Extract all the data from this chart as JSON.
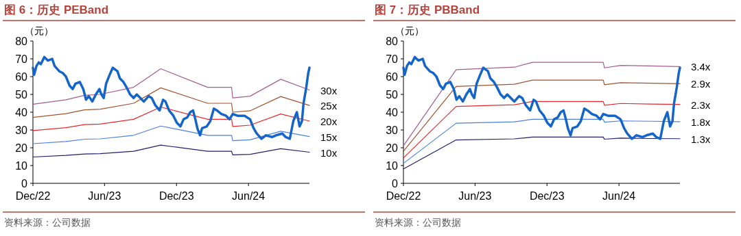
{
  "chart_data": [
    {
      "type": "line",
      "title": "图 6：历史 PEBand",
      "ylabel": "（元）",
      "annotations": [
        "资料来源：公司数据"
      ],
      "xlim": [
        "2022-12-01",
        "2024-11-03"
      ],
      "xticks": [
        {
          "value": "2022-12-01",
          "label": "Dec/22"
        },
        {
          "value": "2023-06-01",
          "label": "Jun/23"
        },
        {
          "value": "2023-12-01",
          "label": "Dec/23"
        },
        {
          "value": "2024-06-01",
          "label": "Jun/24"
        }
      ],
      "ylim": [
        0,
        80
      ],
      "yticks": [
        0,
        10,
        20,
        30,
        40,
        50,
        60,
        70,
        80
      ],
      "series": [
        {
          "name": "30x",
          "color": "#a35c8e",
          "x": [
            "2022-12-01",
            "2023-02-23",
            "2023-04-11",
            "2023-05-21",
            "2023-08-14",
            "2023-10-22",
            "2024-02-18",
            "2024-04-19",
            "2024-04-22",
            "2024-06-05",
            "2024-08-22",
            "2024-11-03"
          ],
          "values": [
            44.5,
            47.0,
            49.5,
            50.0,
            54.0,
            64.4,
            54.0,
            54.0,
            48.0,
            49.0,
            58.5,
            52.5
          ]
        },
        {
          "name": "25x",
          "color": "#a0522d",
          "x": [
            "2022-12-01",
            "2023-02-23",
            "2023-04-11",
            "2023-05-21",
            "2023-08-14",
            "2023-10-22",
            "2024-02-18",
            "2024-04-19",
            "2024-04-22",
            "2024-06-05",
            "2024-08-22",
            "2024-11-03"
          ],
          "values": [
            37.1,
            39.2,
            41.3,
            41.7,
            45.0,
            53.7,
            45.0,
            45.0,
            40.0,
            40.8,
            48.8,
            43.8
          ]
        },
        {
          "name": "20x",
          "color": "#e8262a",
          "x": [
            "2022-12-01",
            "2023-02-23",
            "2023-04-11",
            "2023-05-21",
            "2023-08-14",
            "2023-10-22",
            "2024-02-18",
            "2024-04-19",
            "2024-04-22",
            "2024-06-05",
            "2024-08-22",
            "2024-11-03"
          ],
          "values": [
            29.7,
            31.3,
            33.0,
            33.3,
            36.0,
            42.9,
            36.0,
            36.0,
            32.0,
            32.7,
            39.0,
            35.0
          ]
        },
        {
          "name": "15x",
          "color": "#4a7fe0",
          "x": [
            "2022-12-01",
            "2023-02-23",
            "2023-04-11",
            "2023-05-21",
            "2023-08-14",
            "2023-10-22",
            "2024-02-18",
            "2024-04-19",
            "2024-04-22",
            "2024-06-05",
            "2024-08-22",
            "2024-11-03"
          ],
          "values": [
            22.3,
            23.5,
            24.8,
            25.0,
            27.0,
            32.2,
            27.0,
            27.0,
            24.0,
            24.5,
            29.3,
            26.3
          ]
        },
        {
          "name": "10x",
          "color": "#1f1f6e",
          "x": [
            "2022-12-01",
            "2023-02-23",
            "2023-04-11",
            "2023-05-21",
            "2023-08-14",
            "2023-10-22",
            "2024-02-18",
            "2024-04-19",
            "2024-04-22",
            "2024-06-05",
            "2024-08-22",
            "2024-11-03"
          ],
          "values": [
            14.8,
            15.7,
            16.5,
            16.7,
            18.0,
            21.5,
            18.0,
            18.0,
            16.0,
            16.3,
            19.5,
            17.5
          ]
        },
        {
          "color": "#1565c8",
          "x": [
            "2022-12-01",
            "2022-12-04",
            "2022-12-10",
            "2022-12-16",
            "2022-12-21",
            "2022-12-30",
            "2023-01-08",
            "2023-01-19",
            "2023-01-25",
            "2023-02-06",
            "2023-02-15",
            "2023-02-23",
            "2023-03-04",
            "2023-03-12",
            "2023-03-19",
            "2023-03-30",
            "2023-04-08",
            "2023-04-15",
            "2023-04-22",
            "2023-05-01",
            "2023-05-10",
            "2023-05-19",
            "2023-05-24",
            "2023-05-30",
            "2023-06-05",
            "2023-06-14",
            "2023-06-22",
            "2023-06-28",
            "2023-07-04",
            "2023-07-10",
            "2023-07-19",
            "2023-07-27",
            "2023-08-05",
            "2023-08-14",
            "2023-08-22",
            "2023-08-31",
            "2023-09-09",
            "2023-09-21",
            "2023-09-29",
            "2023-10-08",
            "2023-10-19",
            "2023-10-28",
            "2023-11-03",
            "2023-11-12",
            "2023-11-23",
            "2023-12-02",
            "2023-12-11",
            "2023-12-19",
            "2023-12-28",
            "2024-01-05",
            "2024-01-12",
            "2024-01-18",
            "2024-01-23",
            "2024-01-30",
            "2024-02-04",
            "2024-02-16",
            "2024-02-25",
            "2024-03-05",
            "2024-03-13",
            "2024-03-24",
            "2024-04-05",
            "2024-04-14",
            "2024-04-22",
            "2024-05-04",
            "2024-05-22",
            "2024-06-05",
            "2024-06-14",
            "2024-06-22",
            "2024-07-04",
            "2024-07-15",
            "2024-07-31",
            "2024-08-10",
            "2024-08-26",
            "2024-09-04",
            "2024-09-14",
            "2024-09-23",
            "2024-10-02",
            "2024-10-09",
            "2024-10-15",
            "2024-10-19",
            "2024-10-26",
            "2024-10-31",
            "2024-11-03"
          ],
          "values": [
            65,
            61,
            66,
            68,
            67,
            71,
            69,
            70,
            66,
            63,
            62,
            60,
            55,
            53,
            56,
            57,
            53,
            47,
            49,
            46,
            50,
            53,
            50,
            48,
            56,
            61,
            65,
            64,
            63,
            59,
            57,
            54,
            50,
            48,
            50,
            48,
            46,
            49,
            48,
            44,
            41,
            47,
            46,
            41,
            38,
            34,
            32,
            36,
            37,
            40,
            41,
            36,
            31,
            27,
            31,
            32,
            35,
            42,
            41,
            39,
            38,
            36,
            39,
            38,
            38,
            36,
            31,
            28,
            25,
            27,
            26,
            27,
            28,
            26,
            25,
            35,
            40,
            32,
            35,
            45,
            54,
            62,
            65
          ]
        }
      ]
    },
    {
      "type": "line",
      "title": "图 7：历史 PBBand",
      "ylabel": "（元）",
      "annotations": [
        "资料来源：公司数据"
      ],
      "xlim": [
        "2022-12-01",
        "2024-11-03"
      ],
      "xticks": [
        {
          "value": "2022-12-01",
          "label": "Dec/22"
        },
        {
          "value": "2023-06-01",
          "label": "Jun/23"
        },
        {
          "value": "2023-12-01",
          "label": "Dec/23"
        },
        {
          "value": "2024-06-01",
          "label": "Jun/24"
        }
      ],
      "ylim": [
        0,
        80
      ],
      "yticks": [
        0,
        10,
        20,
        30,
        40,
        50,
        60,
        70,
        80
      ],
      "series": [
        {
          "name": "3.4x",
          "color": "#a35c8e",
          "x": [
            "2022-12-01",
            "2023-04-14",
            "2023-09-09",
            "2023-10-25",
            "2024-04-22",
            "2024-04-25",
            "2024-06-05",
            "2024-08-22",
            "2024-11-03"
          ],
          "values": [
            21.1,
            63.9,
            65.3,
            68.0,
            68.0,
            64.9,
            66.3,
            66.0,
            65.6
          ]
        },
        {
          "name": "2.9x",
          "color": "#a0522d",
          "x": [
            "2022-12-01",
            "2023-04-14",
            "2023-09-09",
            "2023-10-25",
            "2024-04-22",
            "2024-04-25",
            "2024-06-05",
            "2024-08-22",
            "2024-11-03"
          ],
          "values": [
            18.0,
            54.5,
            55.7,
            58.0,
            58.0,
            55.4,
            56.6,
            56.3,
            56.0
          ]
        },
        {
          "name": "2.3x",
          "color": "#e8262a",
          "x": [
            "2022-12-01",
            "2023-04-14",
            "2023-09-09",
            "2023-10-25",
            "2024-04-22",
            "2024-04-25",
            "2024-06-05",
            "2024-08-22",
            "2024-11-03"
          ],
          "values": [
            14.3,
            43.2,
            44.2,
            46.0,
            46.0,
            43.9,
            44.9,
            44.6,
            44.4
          ]
        },
        {
          "name": "1.8x",
          "color": "#4a7fe0",
          "x": [
            "2022-12-01",
            "2023-04-14",
            "2023-09-09",
            "2023-10-25",
            "2024-04-22",
            "2024-04-25",
            "2024-06-05",
            "2024-08-22",
            "2024-11-03"
          ],
          "values": [
            11.2,
            33.8,
            34.6,
            36.0,
            36.0,
            34.4,
            35.1,
            34.9,
            34.7
          ]
        },
        {
          "name": "1.3x",
          "color": "#1f1f6e",
          "x": [
            "2022-12-01",
            "2023-04-14",
            "2023-09-09",
            "2023-10-25",
            "2024-04-22",
            "2024-04-25",
            "2024-06-05",
            "2024-08-22",
            "2024-11-03"
          ],
          "values": [
            8.1,
            24.4,
            25.0,
            26.0,
            26.0,
            24.8,
            25.4,
            25.2,
            25.1
          ]
        },
        {
          "color": "#1565c8",
          "x": [
            "2022-12-01",
            "2022-12-04",
            "2022-12-10",
            "2022-12-16",
            "2022-12-21",
            "2022-12-30",
            "2023-01-08",
            "2023-01-19",
            "2023-01-25",
            "2023-02-06",
            "2023-02-15",
            "2023-02-23",
            "2023-03-04",
            "2023-03-12",
            "2023-03-19",
            "2023-03-30",
            "2023-04-08",
            "2023-04-15",
            "2023-04-22",
            "2023-05-01",
            "2023-05-10",
            "2023-05-19",
            "2023-05-24",
            "2023-05-30",
            "2023-06-05",
            "2023-06-14",
            "2023-06-22",
            "2023-06-28",
            "2023-07-04",
            "2023-07-10",
            "2023-07-19",
            "2023-07-27",
            "2023-08-05",
            "2023-08-14",
            "2023-08-22",
            "2023-08-31",
            "2023-09-09",
            "2023-09-21",
            "2023-09-29",
            "2023-10-08",
            "2023-10-19",
            "2023-10-28",
            "2023-11-03",
            "2023-11-12",
            "2023-11-23",
            "2023-12-02",
            "2023-12-11",
            "2023-12-19",
            "2023-12-28",
            "2024-01-05",
            "2024-01-12",
            "2024-01-18",
            "2024-01-23",
            "2024-01-30",
            "2024-02-04",
            "2024-02-16",
            "2024-02-25",
            "2024-03-05",
            "2024-03-13",
            "2024-03-24",
            "2024-04-05",
            "2024-04-14",
            "2024-04-22",
            "2024-05-04",
            "2024-05-22",
            "2024-06-05",
            "2024-06-14",
            "2024-06-22",
            "2024-07-04",
            "2024-07-15",
            "2024-07-31",
            "2024-08-10",
            "2024-08-26",
            "2024-09-04",
            "2024-09-14",
            "2024-09-23",
            "2024-10-02",
            "2024-10-09",
            "2024-10-15",
            "2024-10-19",
            "2024-10-26",
            "2024-10-31",
            "2024-11-03"
          ],
          "values": [
            65,
            61,
            66,
            68,
            67,
            71,
            69,
            70,
            66,
            63,
            62,
            60,
            55,
            53,
            56,
            57,
            53,
            47,
            49,
            46,
            50,
            53,
            50,
            48,
            56,
            61,
            65,
            64,
            63,
            59,
            57,
            54,
            50,
            48,
            50,
            48,
            46,
            49,
            48,
            44,
            41,
            47,
            46,
            41,
            38,
            34,
            32,
            36,
            37,
            40,
            41,
            36,
            31,
            27,
            31,
            32,
            35,
            42,
            41,
            39,
            38,
            36,
            39,
            38,
            38,
            36,
            31,
            28,
            25,
            27,
            26,
            27,
            28,
            26,
            25,
            35,
            40,
            32,
            35,
            45,
            54,
            62,
            65
          ]
        }
      ]
    }
  ]
}
